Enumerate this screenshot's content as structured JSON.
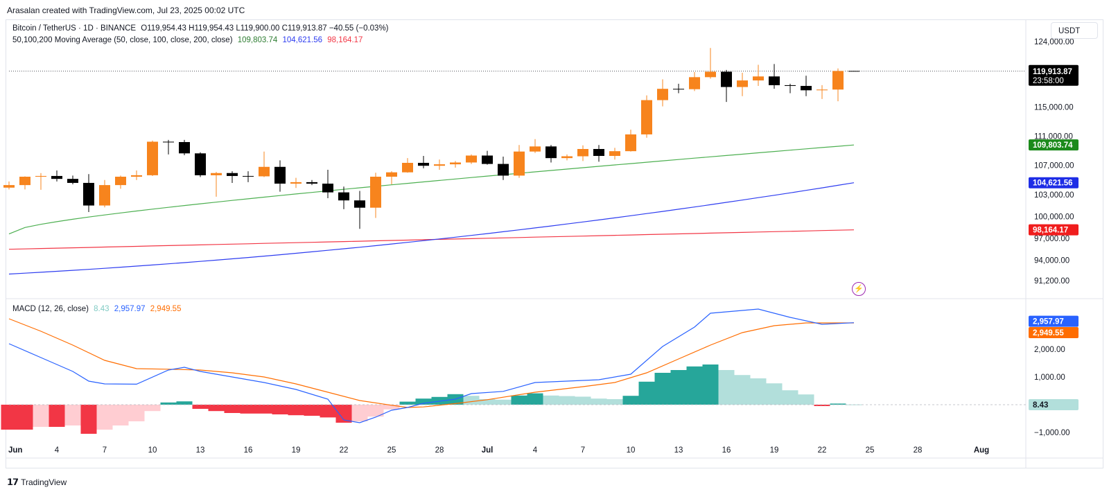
{
  "credit": "Arasalan created with TradingView.com, Jul 23, 2025 00:02 UTC",
  "legend": {
    "symbol": "Bitcoin / TetherUS · 1D · BINANCE",
    "ohlc": "O119,954.43  H119,954.43  L119,900.00  C119,913.87  −40.55 (−0.03%)",
    "ma_title": "50,100,200 Moving Average (50, close, 100, close, 200, close)",
    "ma50": "109,803.74",
    "ma100": "104,621.56",
    "ma200": "98,164.17",
    "macd_title": "MACD (12, 26, close)",
    "macd_hist": "8.43",
    "macd_line": "2,957.97",
    "macd_signal": "2,949.55"
  },
  "currency": "USDT",
  "branding": "TradingView",
  "price_axis_labels": [
    "124,000.00",
    "115,000.00",
    "111,000.00",
    "107,000.00",
    "103,000.00",
    "100,000.00",
    "97,000.00",
    "94,000.00",
    "91,200.00"
  ],
  "price_axis_values": [
    124000,
    115000,
    111000,
    107000,
    103000,
    100000,
    97000,
    94000,
    91200
  ],
  "macd_axis_labels": [
    "2,000.00",
    "1,000.00",
    "−1,000.00"
  ],
  "macd_axis_values": [
    2000,
    1000,
    -1000
  ],
  "x_ticks": [
    {
      "label": "Jun",
      "day": 0,
      "bold": true
    },
    {
      "label": "4",
      "day": 3
    },
    {
      "label": "7",
      "day": 6
    },
    {
      "label": "10",
      "day": 9
    },
    {
      "label": "13",
      "day": 12
    },
    {
      "label": "16",
      "day": 15
    },
    {
      "label": "19",
      "day": 18
    },
    {
      "label": "22",
      "day": 21
    },
    {
      "label": "25",
      "day": 24
    },
    {
      "label": "28",
      "day": 27
    },
    {
      "label": "Jul",
      "day": 30,
      "bold": true
    },
    {
      "label": "4",
      "day": 33
    },
    {
      "label": "7",
      "day": 36
    },
    {
      "label": "10",
      "day": 39
    },
    {
      "label": "13",
      "day": 42
    },
    {
      "label": "16",
      "day": 45
    },
    {
      "label": "19",
      "day": 48
    },
    {
      "label": "22",
      "day": 51
    },
    {
      "label": "25",
      "day": 54
    },
    {
      "label": "28",
      "day": 57
    },
    {
      "label": "Aug",
      "day": 61,
      "bold": true
    }
  ],
  "badges": {
    "last_price": "119,913.87",
    "countdown": "23:58:00",
    "ma50": "109,803.74",
    "ma100": "104,621.56",
    "ma200": "98,164.17",
    "macd_line": "2,957.97",
    "macd_signal": "2,949.55",
    "macd_hist": "8.43"
  },
  "colors": {
    "up": "#f7841d",
    "down": "#000000",
    "ma50": "#4caf50",
    "ma100": "#2d3cf0",
    "ma200": "#f23645",
    "macd": "#2962ff",
    "signal": "#ff6d00",
    "hist_pos_strong": "#26a69a",
    "hist_pos_weak": "#b2dfdb",
    "hist_neg_strong": "#f23645",
    "hist_neg_weak": "#ffcdd2"
  },
  "chart_data": {
    "type": "candlestick",
    "symbol": "BTCUSDT",
    "interval": "1D",
    "price_range": [
      89200,
      125500
    ],
    "macd_range": [
      -1300,
      3700
    ],
    "candles": [
      [
        103950,
        104800,
        103700,
        104300
      ],
      [
        104300,
        105500,
        103700,
        105450
      ],
      [
        105450,
        105950,
        103650,
        105550
      ],
      [
        105550,
        106300,
        104800,
        105150
      ],
      [
        105150,
        105600,
        104400,
        104600
      ],
      [
        104600,
        105800,
        100600,
        101500
      ],
      [
        101500,
        105000,
        101250,
        104300
      ],
      [
        104300,
        105600,
        103800,
        105450
      ],
      [
        105450,
        106300,
        105000,
        105650
      ],
      [
        105650,
        110400,
        105550,
        110250
      ],
      [
        110250,
        110500,
        108500,
        110200
      ],
      [
        110200,
        110500,
        108400,
        108650
      ],
      [
        108650,
        108800,
        105400,
        105650
      ],
      [
        105650,
        106100,
        102700,
        105950
      ],
      [
        105950,
        106200,
        104600,
        105550
      ],
      [
        105550,
        106200,
        104700,
        105500
      ],
      [
        105500,
        108900,
        105400,
        106800
      ],
      [
        106800,
        107700,
        103400,
        104500
      ],
      [
        104500,
        105300,
        103900,
        104700
      ],
      [
        104700,
        105000,
        104300,
        104500
      ],
      [
        104500,
        106400,
        102500,
        103300
      ],
      [
        103300,
        104100,
        101000,
        102200
      ],
      [
        102200,
        103500,
        98300,
        101200
      ],
      [
        101200,
        106000,
        99800,
        105450
      ],
      [
        105450,
        106200,
        104400,
        106050
      ],
      [
        106050,
        108000,
        106000,
        107350
      ],
      [
        107350,
        108300,
        106600,
        106950
      ],
      [
        106950,
        107800,
        106400,
        107150
      ],
      [
        107150,
        107600,
        106700,
        107400
      ],
      [
        107400,
        108500,
        107200,
        108350
      ],
      [
        108350,
        109000,
        107100,
        107200
      ],
      [
        107200,
        108200,
        105000,
        105600
      ],
      [
        105600,
        109800,
        105300,
        108900
      ],
      [
        108900,
        110600,
        108700,
        109600
      ],
      [
        109600,
        109800,
        107400,
        108000
      ],
      [
        108000,
        108500,
        107700,
        108250
      ],
      [
        108250,
        109750,
        107600,
        109250
      ],
      [
        109250,
        109800,
        107500,
        108300
      ],
      [
        108300,
        109400,
        107800,
        108950
      ],
      [
        108950,
        111900,
        108900,
        111250
      ],
      [
        111250,
        116600,
        110800,
        115950
      ],
      [
        115950,
        118800,
        115100,
        117500
      ],
      [
        117500,
        118200,
        116900,
        117450
      ],
      [
        117450,
        119800,
        117200,
        119100
      ],
      [
        119100,
        123100,
        118900,
        119850
      ],
      [
        119850,
        120100,
        115700,
        117750
      ],
      [
        117750,
        119700,
        116500,
        118650
      ],
      [
        118650,
        120800,
        117900,
        119200
      ],
      [
        119200,
        120900,
        117500,
        118000
      ],
      [
        118000,
        118200,
        116900,
        117900
      ],
      [
        117900,
        119300,
        116500,
        117300
      ],
      [
        117300,
        118000,
        116100,
        117400
      ],
      [
        117400,
        120300,
        115800,
        119950
      ],
      [
        119954.43,
        119954.43,
        119900,
        119913.87
      ]
    ],
    "ma50": {
      "start": 97600,
      "end": 109803.74
    },
    "ma100": {
      "start": 92100,
      "end": 104621.56
    },
    "ma200": {
      "start": 95500,
      "end": 98164.17
    },
    "macd_line": [
      [
        0,
        2200
      ],
      [
        2,
        1700
      ],
      [
        4,
        1200
      ],
      [
        5,
        850
      ],
      [
        6,
        750
      ],
      [
        8,
        740
      ],
      [
        10,
        1250
      ],
      [
        11,
        1350
      ],
      [
        12,
        1200
      ],
      [
        14,
        1000
      ],
      [
        16,
        800
      ],
      [
        18,
        550
      ],
      [
        20,
        200
      ],
      [
        21,
        -550
      ],
      [
        22,
        -650
      ],
      [
        23,
        -450
      ],
      [
        24,
        -200
      ],
      [
        25,
        -100
      ],
      [
        26,
        50
      ],
      [
        28,
        200
      ],
      [
        29,
        400
      ],
      [
        31,
        480
      ],
      [
        33,
        800
      ],
      [
        35,
        850
      ],
      [
        37,
        900
      ],
      [
        39,
        1100
      ],
      [
        41,
        2100
      ],
      [
        43,
        2800
      ],
      [
        44,
        3300
      ],
      [
        47,
        3450
      ],
      [
        49,
        3150
      ],
      [
        51,
        2900
      ],
      [
        53,
        2957.97
      ]
    ],
    "signal_line": [
      [
        0,
        3100
      ],
      [
        2,
        2650
      ],
      [
        4,
        2150
      ],
      [
        6,
        1600
      ],
      [
        8,
        1300
      ],
      [
        10,
        1280
      ],
      [
        12,
        1250
      ],
      [
        14,
        1150
      ],
      [
        16,
        1000
      ],
      [
        18,
        750
      ],
      [
        20,
        450
      ],
      [
        22,
        150
      ],
      [
        24,
        -20
      ],
      [
        25,
        -100
      ],
      [
        26,
        -80
      ],
      [
        28,
        40
      ],
      [
        30,
        180
      ],
      [
        33,
        450
      ],
      [
        36,
        650
      ],
      [
        38,
        800
      ],
      [
        40,
        1150
      ],
      [
        42,
        1650
      ],
      [
        44,
        2150
      ],
      [
        46,
        2600
      ],
      [
        48,
        2850
      ],
      [
        50,
        2950
      ],
      [
        53,
        2949.55
      ]
    ],
    "histogram": [
      -900,
      -900,
      -800,
      -800,
      -750,
      -1050,
      -900,
      -750,
      -600,
      -230,
      80,
      120,
      -150,
      -230,
      -300,
      -320,
      -320,
      -350,
      -380,
      -400,
      -460,
      -650,
      -600,
      -430,
      -170,
      110,
      220,
      280,
      380,
      320,
      200,
      180,
      330,
      410,
      330,
      310,
      290,
      220,
      200,
      320,
      830,
      1150,
      1250,
      1380,
      1450,
      1250,
      1070,
      950,
      770,
      520,
      370,
      -50,
      40,
      8.43
    ]
  }
}
